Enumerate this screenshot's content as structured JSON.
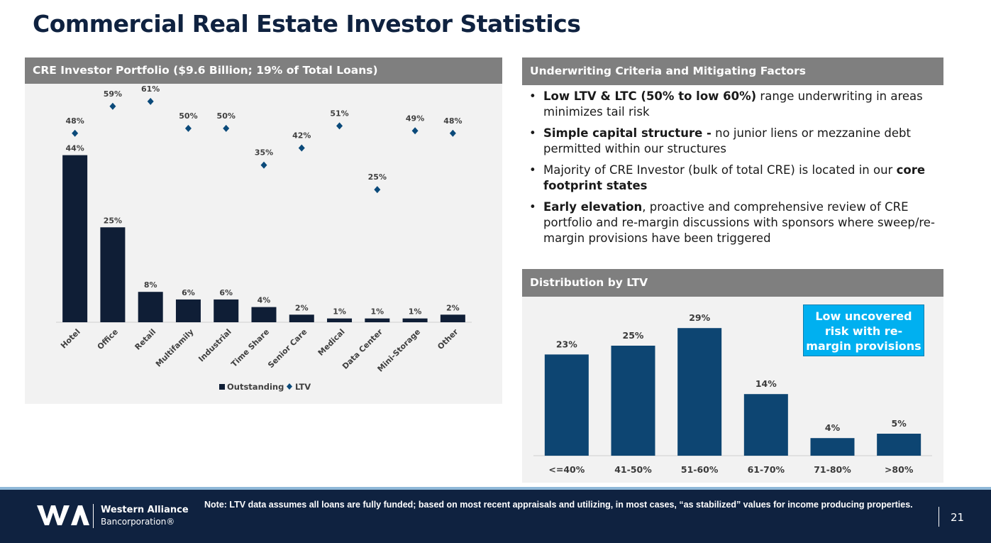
{
  "page": {
    "title": "Commercial Real Estate Investor Statistics"
  },
  "left_panel": {
    "header": "CRE Investor Portfolio ($9.6 Billion; 19% of Total Loans)"
  },
  "underwriting": {
    "header": "Underwriting Criteria and Mitigating Factors",
    "bullets": [
      {
        "bold_lead": "Low LTV & LTC (50% to low 60%)",
        "text": " range underwriting in areas minimizes tail risk"
      },
      {
        "bold_lead": "Simple capital structure -",
        "text": " no junior liens or mezzanine debt permitted within our structures"
      },
      {
        "text": "Majority of CRE Investor (bulk of total CRE) is located in our ",
        "bold_tail": "core footprint states"
      },
      {
        "bold_lead": "Early elevation",
        "text": ", proactive and comprehensive review of CRE portfolio and re-margin discussions with sponsors where sweep/re-margin provisions have been triggered"
      }
    ]
  },
  "distribution": {
    "header": "Distribution by LTV",
    "callout": "Low uncovered risk with re-margin provisions"
  },
  "chart_data": [
    {
      "type": "bar",
      "title": "CRE Investor Portfolio ($9.6 Billion; 19% of Total Loans)",
      "categories": [
        "Hotel",
        "Office",
        "Retail",
        "Multifamily",
        "Industrial",
        "Time Share",
        "Senior Care",
        "Medical",
        "Data Center",
        "Mini-Storage",
        "Other"
      ],
      "series": [
        {
          "name": "Outstanding",
          "kind": "bar",
          "color": "#0f1e36",
          "values": [
            44,
            25,
            8,
            6,
            6,
            4,
            2,
            1,
            1,
            1,
            2
          ],
          "labels": [
            "44%",
            "25%",
            "8%",
            "6%",
            "6%",
            "4%",
            "2%",
            "1%",
            "1%",
            "1%",
            "2%"
          ]
        },
        {
          "name": "LTV",
          "kind": "diamond",
          "color": "#0b4a7a",
          "values": [
            48,
            59,
            61,
            50,
            50,
            35,
            42,
            51,
            25,
            49,
            48
          ],
          "labels": [
            "48%",
            "59%",
            "61%",
            "50%",
            "50%",
            "35%",
            "42%",
            "51%",
            "25%",
            "49%",
            "48%"
          ]
        }
      ],
      "legend": "bottom"
    },
    {
      "type": "bar",
      "title": "Distribution by LTV",
      "categories": [
        "<=40%",
        "41-50%",
        "51-60%",
        "61-70%",
        "71-80%",
        ">80%"
      ],
      "values": [
        23,
        25,
        29,
        14,
        4,
        5
      ],
      "labels": [
        "23%",
        "25%",
        "29%",
        "14%",
        "4%",
        "5%"
      ],
      "color": "#0d4572"
    }
  ],
  "footer": {
    "company_name": "Western Alliance",
    "company_sub": "Bancorporation®",
    "note": "Note: LTV data assumes all loans are fully funded; based on most recent appraisals and utilizing, in most cases, “as stabilized” values for income producing properties.",
    "page_number": "21"
  }
}
